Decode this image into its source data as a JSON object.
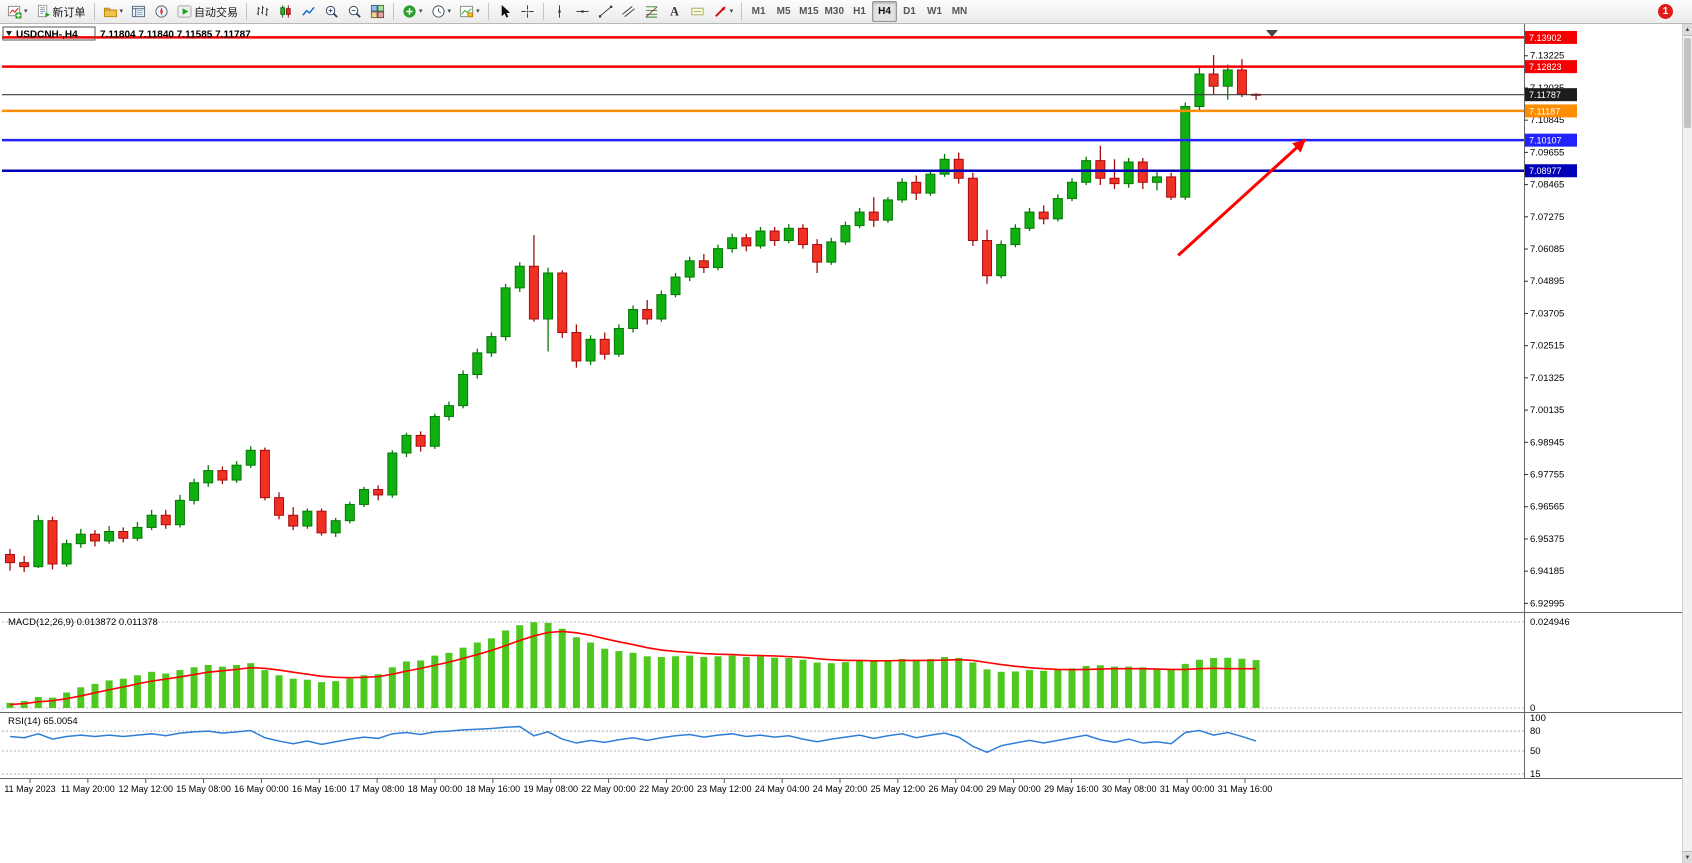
{
  "toolbar": {
    "new_order_label": "新订单",
    "auto_trading_label": "自动交易",
    "timeframes": [
      "M1",
      "M5",
      "M15",
      "M30",
      "H1",
      "H4",
      "D1",
      "W1",
      "MN"
    ],
    "active_timeframe": "H4",
    "notification_count": "1"
  },
  "chart_window": {
    "symbol_period": "USDCNH-,H4",
    "ohlc_text": "7.11804 7.11840 7.11585 7.11787",
    "open": "7.11804",
    "high": "7.11840",
    "low": "7.11585",
    "close": "7.11787"
  },
  "chart_data": {
    "type": "candlestick",
    "symbol": "USDCNH",
    "timeframe": "H4",
    "price_range": {
      "max": 7.1425,
      "min": 6.9275
    },
    "price_axis_ticks": [
      "7.13225",
      "7.12035",
      "7.10845",
      "7.09655",
      "7.08465",
      "7.07275",
      "7.06085",
      "7.04895",
      "7.03705",
      "7.02515",
      "7.01325",
      "7.00135",
      "6.98945",
      "6.97755",
      "6.96565",
      "6.95375",
      "6.94185",
      "6.92995"
    ],
    "horizontal_lines": [
      {
        "price": 7.13902,
        "label": "7.13902",
        "color": "#f50000",
        "tag_color": "#f50000",
        "width": 2.5
      },
      {
        "price": 7.12823,
        "label": "7.12823",
        "color": "#f50000",
        "tag_color": "#f50000",
        "width": 2.5
      },
      {
        "price": 7.11787,
        "label": "7.11787",
        "color": "#3c3c3c",
        "tag_color": "#1c1c1c",
        "width": 1.2
      },
      {
        "price": 7.11187,
        "label": "7.11187",
        "color": "#ff8d00",
        "tag_color": "#ff8d00",
        "width": 2.5
      },
      {
        "price": 7.10107,
        "label": "7.10107",
        "color": "#2222ff",
        "tag_color": "#2222ff",
        "width": 2.5
      },
      {
        "price": 7.08977,
        "label": "7.08977",
        "color": "#0000b8",
        "tag_color": "#0000b8",
        "width": 2.5
      }
    ],
    "colors": {
      "up": {
        "fill": "#10b010",
        "stroke": "#077807"
      },
      "down": {
        "fill": "#f03022",
        "stroke": "#a50d0d"
      }
    },
    "candles": [
      [
        6.948,
        6.95,
        6.942,
        6.945
      ],
      [
        6.945,
        6.9475,
        6.9415,
        6.9435
      ],
      [
        6.9435,
        6.9625,
        6.943,
        6.9605
      ],
      [
        6.9605,
        6.962,
        6.9425,
        6.9445
      ],
      [
        6.9445,
        6.9535,
        6.9435,
        6.952
      ],
      [
        6.952,
        6.9575,
        6.9505,
        6.9555
      ],
      [
        6.9555,
        6.957,
        6.951,
        6.953
      ],
      [
        6.953,
        6.9585,
        6.952,
        6.9565
      ],
      [
        6.9565,
        6.958,
        6.9525,
        6.954
      ],
      [
        6.954,
        6.96,
        6.953,
        6.958
      ],
      [
        6.958,
        6.9645,
        6.957,
        6.9625
      ],
      [
        6.9625,
        6.9645,
        6.9575,
        6.959
      ],
      [
        6.959,
        6.97,
        6.958,
        6.968
      ],
      [
        6.968,
        6.976,
        6.9665,
        6.9745
      ],
      [
        6.9745,
        6.981,
        6.973,
        6.979
      ],
      [
        6.979,
        6.9805,
        6.974,
        6.9755
      ],
      [
        6.9755,
        6.9825,
        6.9745,
        6.981
      ],
      [
        6.981,
        6.988,
        6.98,
        6.9865
      ],
      [
        6.9865,
        6.9875,
        6.968,
        6.969
      ],
      [
        6.969,
        6.971,
        6.961,
        6.9625
      ],
      [
        6.9625,
        6.9655,
        6.957,
        6.9585
      ],
      [
        6.9585,
        6.965,
        6.9575,
        6.964
      ],
      [
        6.964,
        6.965,
        6.955,
        6.956
      ],
      [
        6.956,
        6.9615,
        6.9545,
        6.9605
      ],
      [
        6.9605,
        6.9675,
        6.9595,
        6.9665
      ],
      [
        6.9665,
        6.973,
        6.9655,
        6.972
      ],
      [
        6.972,
        6.9735,
        6.968,
        6.97
      ],
      [
        6.97,
        6.9865,
        6.969,
        6.9855
      ],
      [
        6.9855,
        6.993,
        6.984,
        6.992
      ],
      [
        6.992,
        6.9935,
        6.986,
        6.988
      ],
      [
        6.988,
        7.0,
        6.987,
        6.999
      ],
      [
        6.999,
        7.0045,
        6.9975,
        7.003
      ],
      [
        7.003,
        7.016,
        7.002,
        7.0145
      ],
      [
        7.0145,
        7.024,
        7.013,
        7.0225
      ],
      [
        7.0225,
        7.03,
        7.021,
        7.0285
      ],
      [
        7.0285,
        7.048,
        7.027,
        7.0465
      ],
      [
        7.0465,
        7.056,
        7.045,
        7.0545
      ],
      [
        7.0545,
        7.066,
        7.034,
        7.035
      ],
      [
        7.035,
        7.054,
        7.023,
        7.052
      ],
      [
        7.052,
        7.053,
        7.028,
        7.03
      ],
      [
        7.03,
        7.033,
        7.017,
        7.0195
      ],
      [
        7.0195,
        7.029,
        7.018,
        7.0275
      ],
      [
        7.0275,
        7.03,
        7.02,
        7.022
      ],
      [
        7.022,
        7.033,
        7.021,
        7.0315
      ],
      [
        7.0315,
        7.04,
        7.03,
        7.0385
      ],
      [
        7.0385,
        7.042,
        7.033,
        7.035
      ],
      [
        7.035,
        7.0455,
        7.034,
        7.044
      ],
      [
        7.044,
        7.052,
        7.043,
        7.0505
      ],
      [
        7.0505,
        7.058,
        7.049,
        7.0565
      ],
      [
        7.0565,
        7.059,
        7.052,
        7.054
      ],
      [
        7.054,
        7.0625,
        7.053,
        7.061
      ],
      [
        7.061,
        7.0665,
        7.0595,
        7.065
      ],
      [
        7.065,
        7.0665,
        7.06,
        7.062
      ],
      [
        7.062,
        7.069,
        7.061,
        7.0675
      ],
      [
        7.0675,
        7.069,
        7.062,
        7.064
      ],
      [
        7.064,
        7.07,
        7.063,
        7.0685
      ],
      [
        7.0685,
        7.07,
        7.061,
        7.0625
      ],
      [
        7.0625,
        7.0645,
        7.052,
        7.056
      ],
      [
        7.056,
        7.065,
        7.055,
        7.0635
      ],
      [
        7.0635,
        7.071,
        7.0625,
        7.0695
      ],
      [
        7.0695,
        7.076,
        7.0685,
        7.0745
      ],
      [
        7.0745,
        7.08,
        7.069,
        7.0715
      ],
      [
        7.0715,
        7.08,
        7.0705,
        7.079
      ],
      [
        7.079,
        7.087,
        7.078,
        7.0855
      ],
      [
        7.0855,
        7.088,
        7.079,
        7.0815
      ],
      [
        7.0815,
        7.09,
        7.0805,
        7.0885
      ],
      [
        7.0885,
        7.096,
        7.0875,
        7.094
      ],
      [
        7.094,
        7.0965,
        7.085,
        7.087
      ],
      [
        7.087,
        7.089,
        7.062,
        7.064
      ],
      [
        7.064,
        7.068,
        7.048,
        7.051
      ],
      [
        7.051,
        7.064,
        7.05,
        7.0625
      ],
      [
        7.0625,
        7.07,
        7.0615,
        7.0685
      ],
      [
        7.0685,
        7.076,
        7.0675,
        7.0745
      ],
      [
        7.0745,
        7.077,
        7.07,
        7.072
      ],
      [
        7.072,
        7.081,
        7.071,
        7.0795
      ],
      [
        7.0795,
        7.087,
        7.0785,
        7.0855
      ],
      [
        7.0855,
        7.095,
        7.0845,
        7.0935
      ],
      [
        7.0935,
        7.099,
        7.0845,
        7.087
      ],
      [
        7.087,
        7.094,
        7.083,
        7.085
      ],
      [
        7.085,
        7.0945,
        7.0835,
        7.093
      ],
      [
        7.093,
        7.0945,
        7.083,
        7.0855
      ],
      [
        7.0855,
        7.0895,
        7.0825,
        7.0875
      ],
      [
        7.0875,
        7.089,
        7.079,
        7.08
      ],
      [
        7.08,
        7.115,
        7.079,
        7.1135
      ],
      [
        7.1135,
        7.128,
        7.112,
        7.1255
      ],
      [
        7.1255,
        7.1325,
        7.118,
        7.121
      ],
      [
        7.121,
        7.129,
        7.116,
        7.127
      ],
      [
        7.127,
        7.131,
        7.117,
        7.118
      ],
      [
        7.118,
        7.1184,
        7.1159,
        7.1179
      ]
    ],
    "arrow": {
      "from_index": 82.5,
      "from_price": 7.0585,
      "to_index": 91.5,
      "to_price": 7.1013,
      "color": "#ff0000"
    },
    "time_labels": [
      "11 May 2023",
      "11 May 20:00",
      "12 May 12:00",
      "15 May 08:00",
      "16 May 00:00",
      "16 May 16:00",
      "17 May 08:00",
      "18 May 00:00",
      "18 May 16:00",
      "19 May 08:00",
      "22 May 00:00",
      "22 May 20:00",
      "23 May 12:00",
      "24 May 04:00",
      "24 May 20:00",
      "25 May 12:00",
      "26 May 04:00",
      "29 May 00:00",
      "29 May 16:00",
      "30 May 08:00",
      "31 May 00:00",
      "31 May 16:00"
    ],
    "macd": {
      "label": "MACD(12,26,9) 0.013872 0.011378",
      "value": "0.013872",
      "signal_value": "0.011378",
      "scale_max": 0.024946,
      "scale_max_label": "0.024946",
      "scale_zero_label": "0",
      "bar_color": "#4ec81e",
      "signal_color": "#ff0000",
      "values": [
        0.0015,
        0.002,
        0.0032,
        0.003,
        0.0045,
        0.006,
        0.007,
        0.008,
        0.0085,
        0.0095,
        0.0105,
        0.01,
        0.011,
        0.0118,
        0.0125,
        0.012,
        0.0125,
        0.013,
        0.011,
        0.0095,
        0.0085,
        0.0082,
        0.0075,
        0.0078,
        0.0085,
        0.0095,
        0.0098,
        0.0118,
        0.0135,
        0.0138,
        0.0152,
        0.016,
        0.0175,
        0.019,
        0.0202,
        0.0225,
        0.024,
        0.0249,
        0.0247,
        0.023,
        0.0205,
        0.019,
        0.0172,
        0.0165,
        0.016,
        0.015,
        0.0148,
        0.015,
        0.0152,
        0.0148,
        0.015,
        0.0152,
        0.0148,
        0.015,
        0.0146,
        0.0145,
        0.014,
        0.0132,
        0.013,
        0.0133,
        0.0138,
        0.0135,
        0.0138,
        0.0142,
        0.0138,
        0.0142,
        0.0148,
        0.0145,
        0.0132,
        0.0112,
        0.0105,
        0.0106,
        0.011,
        0.0108,
        0.0112,
        0.0115,
        0.0122,
        0.0124,
        0.012,
        0.012,
        0.0118,
        0.0114,
        0.011,
        0.0128,
        0.014,
        0.0145,
        0.0146,
        0.0143,
        0.0139
      ],
      "signal": [
        0.001,
        0.0013,
        0.0018,
        0.0021,
        0.0027,
        0.0035,
        0.0044,
        0.0053,
        0.0061,
        0.007,
        0.0078,
        0.0084,
        0.009,
        0.0097,
        0.0104,
        0.0108,
        0.0112,
        0.0117,
        0.0115,
        0.011,
        0.0104,
        0.0098,
        0.0092,
        0.0089,
        0.0088,
        0.0089,
        0.0091,
        0.0098,
        0.0107,
        0.0115,
        0.0124,
        0.0133,
        0.0144,
        0.0155,
        0.0167,
        0.0181,
        0.0196,
        0.0209,
        0.0219,
        0.0222,
        0.0218,
        0.0211,
        0.0201,
        0.0192,
        0.0184,
        0.0175,
        0.0168,
        0.0164,
        0.0161,
        0.0158,
        0.0156,
        0.0155,
        0.0153,
        0.0152,
        0.0151,
        0.0149,
        0.0147,
        0.0143,
        0.014,
        0.0138,
        0.0138,
        0.0137,
        0.0137,
        0.0138,
        0.0138,
        0.0138,
        0.0139,
        0.014,
        0.0138,
        0.0132,
        0.0126,
        0.0121,
        0.0117,
        0.0114,
        0.0112,
        0.0111,
        0.0112,
        0.0113,
        0.0114,
        0.0114,
        0.0114,
        0.0113,
        0.0112,
        0.0112,
        0.0114,
        0.0115,
        0.0114,
        0.0114,
        0.0114
      ]
    },
    "rsi": {
      "label": "RSI(14) 65.0054",
      "value": "65.0054",
      "line_color": "#2f7ed8",
      "levels": [
        "100",
        "80",
        "50",
        "15"
      ],
      "level_values": [
        100,
        80,
        50,
        15
      ],
      "values": [
        72,
        70,
        76,
        68,
        72,
        74,
        72,
        74,
        72,
        74,
        76,
        73,
        77,
        79,
        80,
        77,
        79,
        81,
        70,
        65,
        61,
        65,
        60,
        64,
        68,
        71,
        69,
        76,
        78,
        75,
        79,
        80,
        82,
        83,
        84,
        86,
        87,
        73,
        79,
        68,
        62,
        66,
        63,
        67,
        70,
        66,
        70,
        73,
        75,
        71,
        74,
        76,
        72,
        74,
        71,
        73,
        68,
        64,
        68,
        71,
        74,
        69,
        73,
        76,
        70,
        74,
        77,
        71,
        57,
        48,
        58,
        62,
        66,
        62,
        66,
        70,
        74,
        67,
        63,
        68,
        62,
        64,
        61,
        78,
        81,
        74,
        78,
        72,
        65
      ]
    }
  }
}
